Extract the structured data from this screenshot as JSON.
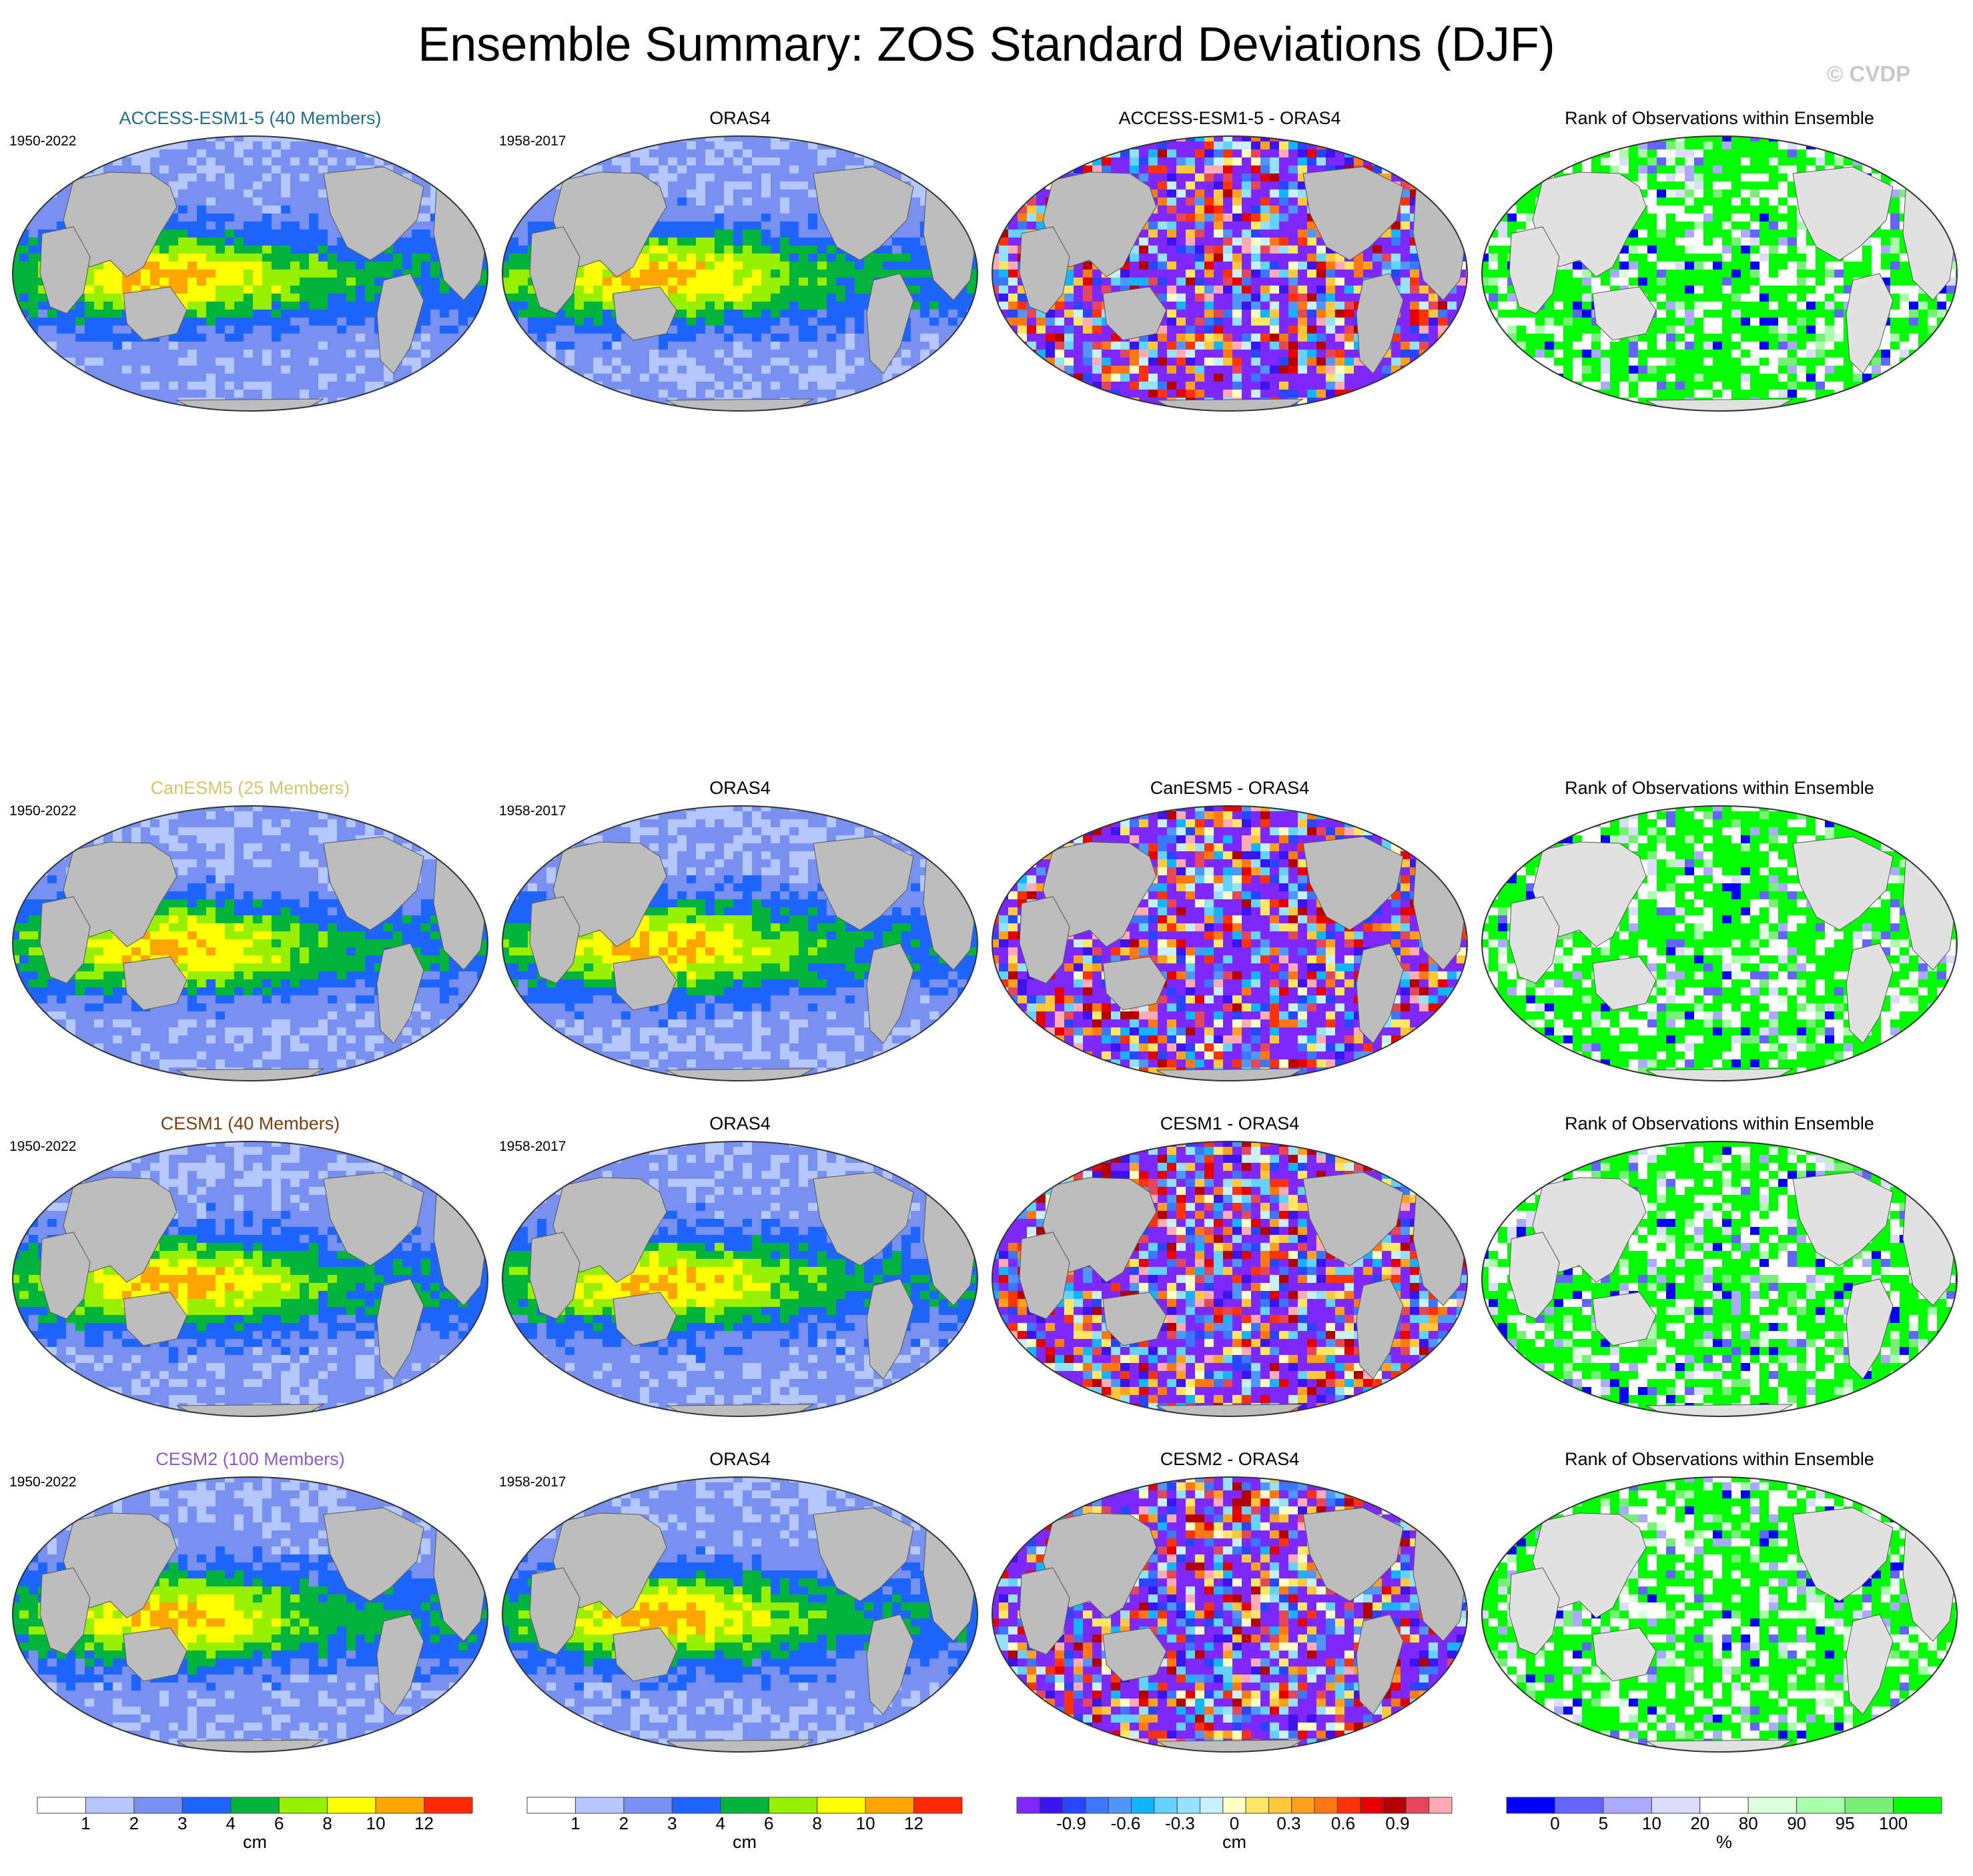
{
  "title": "Ensemble Summary: ZOS Standard Deviations (DJF)",
  "watermark": "© CVDP",
  "rows": [
    {
      "model": "ACCESS-ESM1-5 (40 Members)",
      "model_color": "#1f6e8c",
      "model_period": "1950-2022",
      "obs": "ORAS4",
      "obs_period": "1958-2017",
      "diff_title": "ACCESS-ESM1-5 - ORAS4",
      "rank_title": "Rank of Observations within Ensemble"
    },
    {
      "model": "CanESM5 (25 Members)",
      "model_color": "#d6c46b",
      "model_period": "1950-2022",
      "obs": "ORAS4",
      "obs_period": "1958-2017",
      "diff_title": "CanESM5 - ORAS4",
      "rank_title": "Rank of Observations within Ensemble"
    },
    {
      "model": "CESM1 (40 Members)",
      "model_color": "#7a3e12",
      "model_period": "1950-2022",
      "obs": "ORAS4",
      "obs_period": "1958-2017",
      "diff_title": "CESM1 - ORAS4",
      "rank_title": "Rank of Observations within Ensemble"
    },
    {
      "model": "CESM2 (100 Members)",
      "model_color": "#8a5cc8",
      "model_period": "1950-2022",
      "obs": "ORAS4",
      "obs_period": "1958-2017",
      "diff_title": "CESM2 - ORAS4",
      "rank_title": "Rank of Observations within Ensemble"
    }
  ],
  "colorbars": [
    {
      "units": "cm",
      "colors": [
        "#ffffff",
        "#b4c8ff",
        "#7890f0",
        "#1e64ff",
        "#00b43c",
        "#96f000",
        "#ffff00",
        "#ffa500",
        "#ff2800"
      ],
      "labels": [
        "1",
        "2",
        "3",
        "4",
        "6",
        "8",
        "10",
        "12"
      ]
    },
    {
      "units": "cm",
      "colors": [
        "#ffffff",
        "#b4c8ff",
        "#7890f0",
        "#1e64ff",
        "#00b43c",
        "#96f000",
        "#ffff00",
        "#ffa500",
        "#ff2800"
      ],
      "labels": [
        "1",
        "2",
        "3",
        "4",
        "6",
        "8",
        "10",
        "12"
      ]
    },
    {
      "units": "cm",
      "colors": [
        "#7d28ff",
        "#3c14f0",
        "#2846ff",
        "#3c78ff",
        "#5096ff",
        "#14b4ff",
        "#64d2ff",
        "#96e1ff",
        "#c8f0ff",
        "#ffffc8",
        "#ffe664",
        "#ffc83c",
        "#ffa01e",
        "#ff7814",
        "#ff320a",
        "#e60000",
        "#b40000",
        "#e6465a",
        "#ffaab4"
      ],
      "labels": [
        "-0.9",
        "-0.6",
        "-0.3",
        "0",
        "0.3",
        "0.6",
        "0.9"
      ]
    },
    {
      "units": "%",
      "colors": [
        "#0000ff",
        "#6464ff",
        "#aaaaff",
        "#dcdcff",
        "#ffffff",
        "#dcffdc",
        "#aaffaa",
        "#78f078",
        "#00ff00"
      ],
      "labels": [
        "0",
        "5",
        "10",
        "20",
        "80",
        "90",
        "95",
        "100"
      ]
    }
  ]
}
